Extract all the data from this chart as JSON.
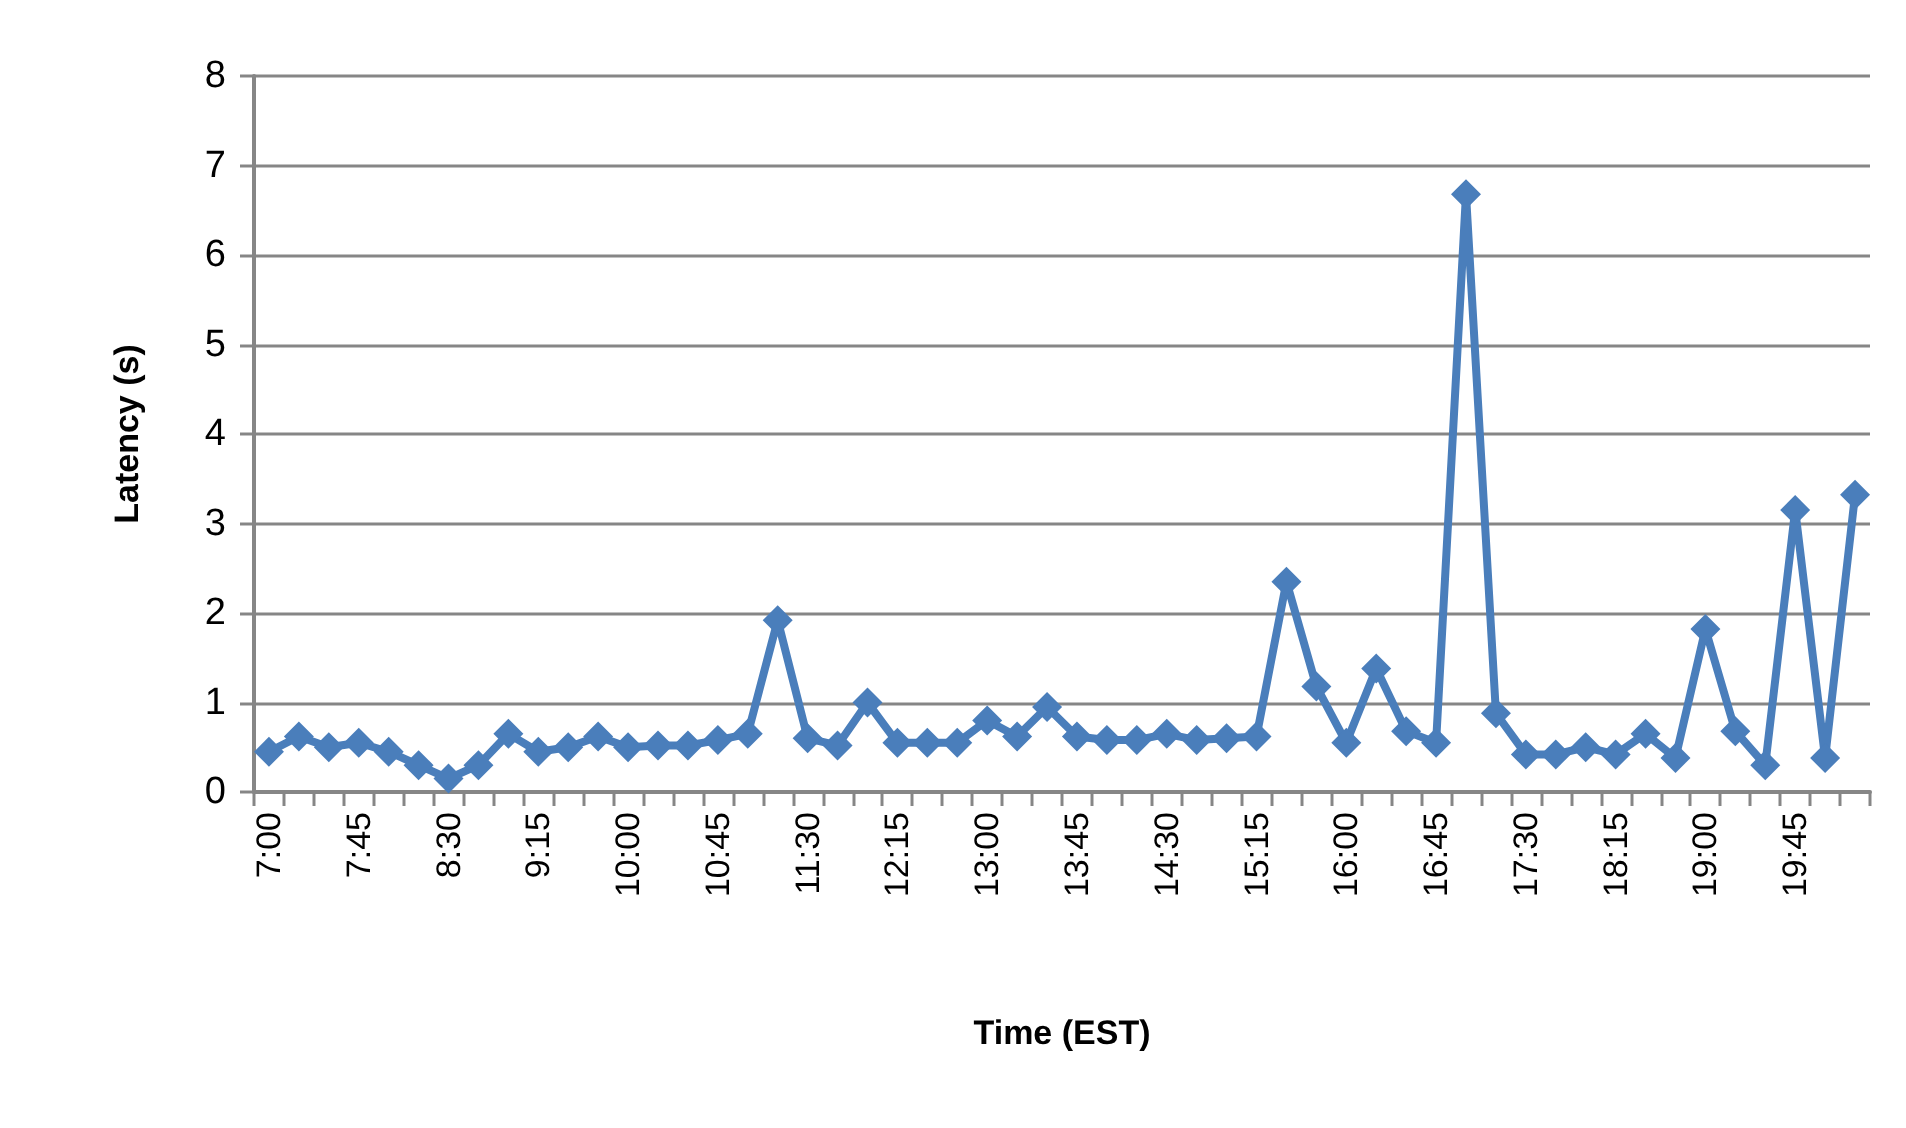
{
  "chart_data": {
    "type": "line",
    "xlabel": "Time (EST)",
    "ylabel": "Latency (s)",
    "categories": [
      "7:00",
      null,
      null,
      "7:45",
      null,
      null,
      "8:30",
      null,
      null,
      "9:15",
      null,
      null,
      "10:00",
      null,
      null,
      "10:45",
      null,
      null,
      "11:30",
      null,
      null,
      "12:15",
      null,
      null,
      "13:00",
      null,
      null,
      "13:45",
      null,
      null,
      "14:30",
      null,
      null,
      "15:15",
      null,
      null,
      "16:00",
      null,
      null,
      "16:45",
      null,
      null,
      "17:30",
      null,
      null,
      "18:15",
      null,
      null,
      "19:00",
      null,
      null,
      "19:45",
      null,
      null
    ],
    "series": [
      {
        "color": "#4a7ebb",
        "values": [
          0.45,
          0.62,
          0.5,
          0.55,
          0.45,
          0.3,
          0.15,
          0.3,
          0.65,
          0.45,
          0.5,
          0.62,
          0.5,
          0.52,
          0.52,
          0.58,
          0.65,
          1.92,
          0.6,
          0.52,
          1.0,
          0.55,
          0.55,
          0.55,
          0.8,
          0.62,
          0.95,
          0.62,
          0.58,
          0.58,
          0.65,
          0.58,
          0.6,
          0.62,
          2.35,
          1.18,
          0.55,
          1.38,
          0.68,
          0.55,
          6.68,
          0.88,
          0.42,
          0.42,
          0.5,
          0.42,
          0.65,
          0.38,
          1.82,
          0.68,
          0.3,
          3.15,
          0.38,
          3.32
        ]
      }
    ],
    "ylim": [
      0,
      8
    ],
    "yticks": [
      0,
      1,
      2,
      3,
      4,
      5,
      6,
      7,
      8
    ],
    "grid": "y",
    "marker": "diamond",
    "line_style": "solid"
  }
}
